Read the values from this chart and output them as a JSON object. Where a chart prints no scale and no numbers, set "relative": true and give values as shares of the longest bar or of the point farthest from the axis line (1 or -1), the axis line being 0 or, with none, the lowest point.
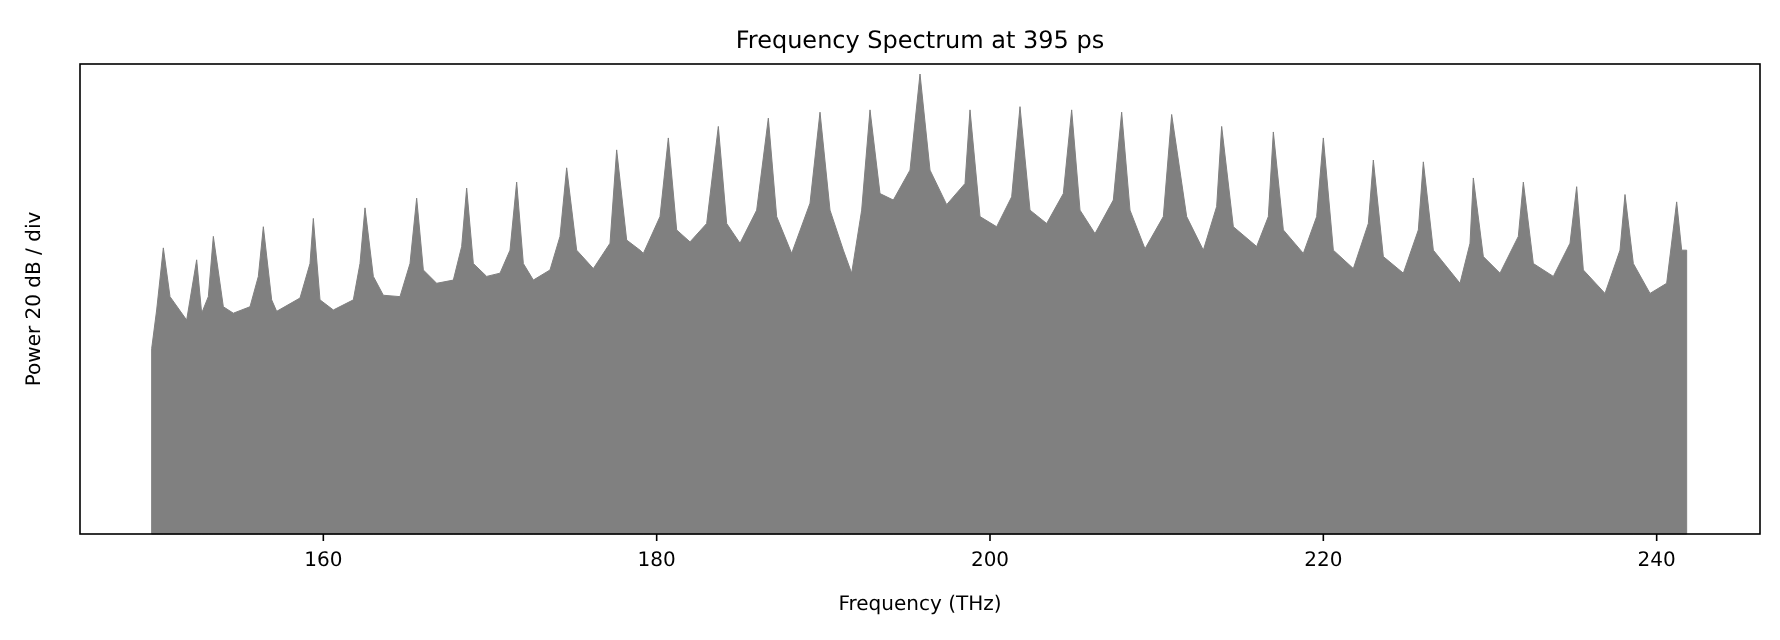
{
  "chart_data": {
    "type": "area",
    "title": "Frequency Spectrum at 395 ps",
    "xlabel": "Frequency (THz)",
    "ylabel": "Power 20 dB / div",
    "relative": true,
    "color": "#808080",
    "xlim": [
      145.4,
      246.2
    ],
    "xticks": [
      160,
      180,
      200,
      220,
      240
    ],
    "grid": false,
    "x": [
      149.7,
      150.0,
      150.4,
      150.8,
      151.8,
      152.4,
      152.7,
      153.1,
      153.4,
      154.0,
      154.6,
      155.6,
      156.1,
      156.4,
      156.9,
      157.2,
      158.6,
      159.2,
      159.4,
      159.8,
      160.6,
      161.8,
      162.2,
      162.5,
      163.0,
      163.6,
      164.6,
      165.2,
      165.6,
      166.0,
      166.8,
      167.8,
      168.3,
      168.6,
      169.0,
      169.8,
      170.6,
      171.2,
      171.6,
      172.0,
      172.6,
      173.6,
      174.2,
      174.6,
      175.2,
      176.2,
      177.2,
      177.6,
      178.2,
      179.0,
      179.2,
      180.2,
      180.7,
      181.2,
      182.0,
      183.0,
      183.7,
      184.2,
      185.0,
      186.0,
      186.7,
      187.2,
      188.1,
      189.2,
      189.8,
      190.4,
      191.2,
      191.7,
      192.3,
      192.8,
      193.4,
      194.2,
      195.2,
      195.8,
      196.4,
      197.4,
      198.5,
      198.8,
      199.4,
      200.4,
      201.3,
      201.8,
      202.4,
      203.4,
      204.4,
      204.9,
      205.4,
      206.3,
      207.4,
      207.9,
      208.4,
      209.3,
      210.4,
      210.9,
      211.8,
      212.8,
      213.6,
      213.9,
      214.6,
      216.0,
      216.7,
      217.0,
      217.6,
      218.8,
      219.6,
      220.0,
      220.6,
      221.8,
      222.7,
      223.0,
      223.6,
      224.8,
      225.7,
      226.0,
      226.6,
      228.2,
      228.8,
      229.0,
      229.6,
      230.6,
      231.7,
      232.0,
      232.6,
      233.8,
      234.8,
      235.2,
      235.6,
      236.9,
      237.8,
      238.1,
      238.6,
      239.6,
      240.6,
      241.2,
      241.5,
      241.8
    ],
    "values": [
      0.403,
      0.487,
      0.622,
      0.516,
      0.465,
      0.596,
      0.48,
      0.516,
      0.647,
      0.494,
      0.48,
      0.494,
      0.56,
      0.668,
      0.509,
      0.484,
      0.513,
      0.588,
      0.686,
      0.509,
      0.487,
      0.509,
      0.588,
      0.709,
      0.56,
      0.519,
      0.516,
      0.588,
      0.73,
      0.574,
      0.545,
      0.552,
      0.625,
      0.752,
      0.588,
      0.56,
      0.567,
      0.617,
      0.765,
      0.588,
      0.552,
      0.574,
      0.647,
      0.796,
      0.617,
      0.577,
      0.632,
      0.835,
      0.639,
      0.617,
      0.61,
      0.69,
      0.861,
      0.661,
      0.635,
      0.675,
      0.886,
      0.675,
      0.632,
      0.704,
      0.904,
      0.69,
      0.61,
      0.719,
      0.917,
      0.704,
      0.617,
      0.567,
      0.704,
      0.922,
      0.74,
      0.726,
      0.791,
      1,
      0.791,
      0.716,
      0.762,
      0.922,
      0.69,
      0.668,
      0.733,
      0.929,
      0.704,
      0.675,
      0.74,
      0.922,
      0.704,
      0.653,
      0.726,
      0.917,
      0.704,
      0.62,
      0.69,
      0.912,
      0.69,
      0.617,
      0.712,
      0.886,
      0.668,
      0.625,
      0.69,
      0.874,
      0.661,
      0.61,
      0.69,
      0.861,
      0.617,
      0.577,
      0.675,
      0.813,
      0.603,
      0.567,
      0.661,
      0.809,
      0.617,
      0.545,
      0.632,
      0.774,
      0.603,
      0.567,
      0.647,
      0.765,
      0.588,
      0.56,
      0.632,
      0.755,
      0.574,
      0.523,
      0.617,
      0.738,
      0.588,
      0.523,
      0.545,
      0.722,
      0.617,
      0.617
    ]
  }
}
